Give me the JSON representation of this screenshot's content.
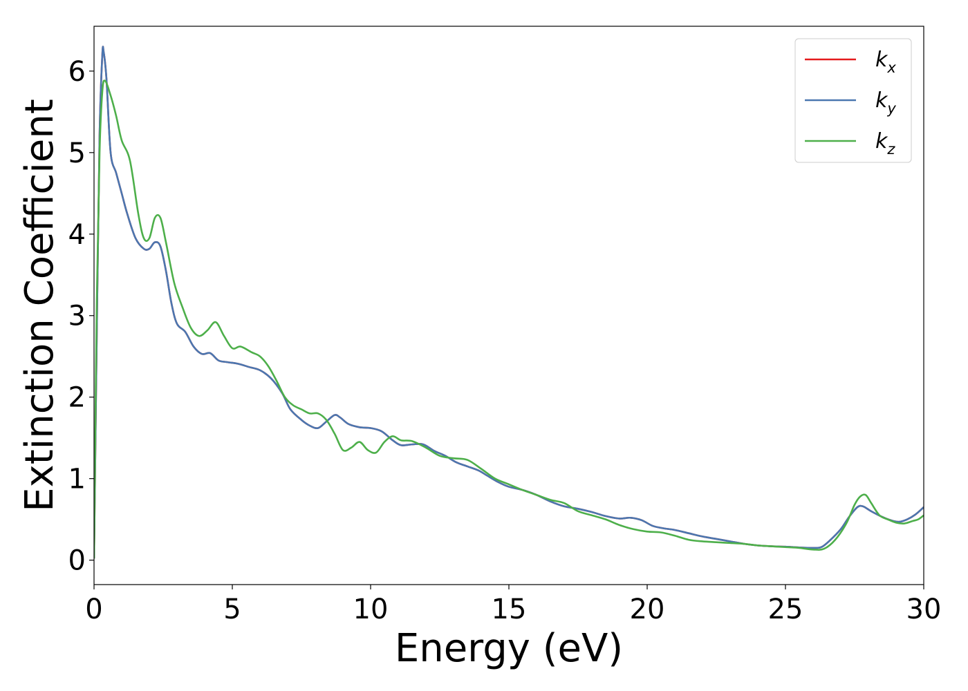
{
  "chart_data": {
    "type": "line",
    "title": "",
    "xlabel": "Energy (eV)",
    "ylabel": "Extinction Coefficient",
    "xlim": [
      0,
      30
    ],
    "ylim": [
      -0.3,
      6.55
    ],
    "xticks": [
      0,
      5,
      10,
      15,
      20,
      25,
      30
    ],
    "yticks": [
      0,
      1,
      2,
      3,
      4,
      5,
      6
    ],
    "grid": false,
    "legend": {
      "placement": "top-right"
    },
    "series": [
      {
        "name": "k_x",
        "label_main": "k",
        "label_sub": "x",
        "color": "#e41a1c",
        "x": [
          0,
          0.1,
          0.2,
          0.3,
          0.35,
          0.45,
          0.6,
          0.8,
          1.0,
          1.2,
          1.5,
          1.8,
          2.0,
          2.2,
          2.4,
          2.6,
          2.8,
          3.0,
          3.3,
          3.6,
          3.9,
          4.2,
          4.5,
          4.8,
          5.2,
          5.6,
          6.0,
          6.4,
          6.8,
          7.1,
          7.5,
          7.8,
          8.1,
          8.4,
          8.7,
          8.9,
          9.2,
          9.6,
          10.0,
          10.4,
          10.8,
          11.1,
          11.5,
          11.9,
          12.3,
          12.7,
          13.1,
          13.5,
          13.9,
          14.2,
          14.6,
          15.0,
          15.5,
          16.0,
          16.5,
          17.0,
          17.5,
          18.0,
          18.5,
          19.0,
          19.4,
          19.8,
          20.2,
          20.6,
          21.0,
          21.5,
          22.0,
          22.5,
          23.0,
          23.5,
          24.0,
          24.5,
          25.0,
          25.5,
          26.0,
          26.3,
          26.6,
          27.0,
          27.3,
          27.6,
          27.8,
          28.1,
          28.5,
          28.8,
          29.1,
          29.4,
          29.7,
          30.0
        ],
        "y": [
          0.02,
          2.8,
          5.2,
          6.2,
          6.23,
          5.9,
          5.0,
          4.75,
          4.5,
          4.25,
          3.95,
          3.82,
          3.82,
          3.9,
          3.85,
          3.55,
          3.15,
          2.9,
          2.8,
          2.62,
          2.53,
          2.54,
          2.45,
          2.43,
          2.41,
          2.37,
          2.33,
          2.23,
          2.05,
          1.85,
          1.72,
          1.65,
          1.62,
          1.7,
          1.78,
          1.75,
          1.67,
          1.63,
          1.62,
          1.58,
          1.47,
          1.41,
          1.42,
          1.42,
          1.34,
          1.28,
          1.2,
          1.15,
          1.1,
          1.04,
          0.96,
          0.9,
          0.86,
          0.8,
          0.72,
          0.66,
          0.63,
          0.59,
          0.54,
          0.51,
          0.52,
          0.49,
          0.42,
          0.39,
          0.37,
          0.33,
          0.29,
          0.26,
          0.23,
          0.2,
          0.18,
          0.17,
          0.165,
          0.155,
          0.15,
          0.16,
          0.24,
          0.38,
          0.53,
          0.65,
          0.66,
          0.6,
          0.53,
          0.49,
          0.47,
          0.5,
          0.56,
          0.65
        ]
      },
      {
        "name": "k_y",
        "label_main": "k",
        "label_sub": "y",
        "color": "#4a77b0",
        "x": [
          0,
          0.1,
          0.2,
          0.3,
          0.35,
          0.45,
          0.6,
          0.8,
          1.0,
          1.2,
          1.5,
          1.8,
          2.0,
          2.2,
          2.4,
          2.6,
          2.8,
          3.0,
          3.3,
          3.6,
          3.9,
          4.2,
          4.5,
          4.8,
          5.2,
          5.6,
          6.0,
          6.4,
          6.8,
          7.1,
          7.5,
          7.8,
          8.1,
          8.4,
          8.7,
          8.9,
          9.2,
          9.6,
          10.0,
          10.4,
          10.8,
          11.1,
          11.5,
          11.9,
          12.3,
          12.7,
          13.1,
          13.5,
          13.9,
          14.2,
          14.6,
          15.0,
          15.5,
          16.0,
          16.5,
          17.0,
          17.5,
          18.0,
          18.5,
          19.0,
          19.4,
          19.8,
          20.2,
          20.6,
          21.0,
          21.5,
          22.0,
          22.5,
          23.0,
          23.5,
          24.0,
          24.5,
          25.0,
          25.5,
          26.0,
          26.3,
          26.6,
          27.0,
          27.3,
          27.6,
          27.8,
          28.1,
          28.5,
          28.8,
          29.1,
          29.4,
          29.7,
          30.0
        ],
        "y": [
          0.02,
          2.8,
          5.2,
          6.2,
          6.23,
          5.9,
          5.0,
          4.75,
          4.5,
          4.25,
          3.95,
          3.82,
          3.82,
          3.9,
          3.85,
          3.55,
          3.15,
          2.9,
          2.8,
          2.62,
          2.53,
          2.54,
          2.45,
          2.43,
          2.41,
          2.37,
          2.33,
          2.23,
          2.05,
          1.85,
          1.72,
          1.65,
          1.62,
          1.7,
          1.78,
          1.75,
          1.67,
          1.63,
          1.62,
          1.58,
          1.47,
          1.41,
          1.42,
          1.42,
          1.34,
          1.28,
          1.2,
          1.15,
          1.1,
          1.04,
          0.96,
          0.9,
          0.86,
          0.8,
          0.72,
          0.66,
          0.63,
          0.59,
          0.54,
          0.51,
          0.52,
          0.49,
          0.42,
          0.39,
          0.37,
          0.33,
          0.29,
          0.26,
          0.23,
          0.2,
          0.18,
          0.17,
          0.165,
          0.155,
          0.15,
          0.16,
          0.24,
          0.38,
          0.53,
          0.65,
          0.66,
          0.6,
          0.53,
          0.49,
          0.47,
          0.5,
          0.56,
          0.65
        ]
      },
      {
        "name": "k_z",
        "label_main": "k",
        "label_sub": "z",
        "color": "#4daf4a",
        "x": [
          0,
          0.1,
          0.2,
          0.3,
          0.4,
          0.6,
          0.8,
          1.0,
          1.3,
          1.6,
          1.8,
          2.0,
          2.2,
          2.4,
          2.6,
          2.9,
          3.2,
          3.5,
          3.8,
          4.1,
          4.4,
          4.7,
          5.0,
          5.3,
          5.7,
          6.0,
          6.3,
          6.6,
          6.9,
          7.2,
          7.5,
          7.8,
          8.1,
          8.4,
          8.7,
          9.0,
          9.3,
          9.6,
          9.9,
          10.2,
          10.5,
          10.8,
          11.1,
          11.5,
          12.0,
          12.5,
          13.0,
          13.5,
          14.0,
          14.5,
          15.0,
          15.5,
          16.0,
          16.5,
          17.0,
          17.5,
          18.0,
          18.5,
          19.0,
          19.5,
          20.0,
          20.5,
          21.0,
          21.5,
          22.0,
          22.5,
          23.0,
          23.5,
          24.0,
          24.5,
          25.0,
          25.5,
          26.0,
          26.4,
          26.8,
          27.2,
          27.5,
          27.7,
          27.9,
          28.1,
          28.4,
          28.7,
          29.0,
          29.3,
          29.6,
          29.8,
          30.0
        ],
        "y": [
          0.02,
          3.2,
          5.0,
          5.75,
          5.88,
          5.7,
          5.45,
          5.15,
          4.9,
          4.25,
          3.95,
          3.95,
          4.2,
          4.2,
          3.9,
          3.4,
          3.1,
          2.85,
          2.75,
          2.82,
          2.92,
          2.75,
          2.6,
          2.62,
          2.55,
          2.5,
          2.38,
          2.2,
          2.0,
          1.9,
          1.85,
          1.8,
          1.8,
          1.72,
          1.55,
          1.35,
          1.38,
          1.45,
          1.35,
          1.32,
          1.45,
          1.52,
          1.47,
          1.46,
          1.38,
          1.28,
          1.25,
          1.23,
          1.12,
          1.0,
          0.93,
          0.86,
          0.8,
          0.74,
          0.7,
          0.6,
          0.55,
          0.5,
          0.43,
          0.38,
          0.35,
          0.34,
          0.3,
          0.25,
          0.23,
          0.22,
          0.21,
          0.2,
          0.18,
          0.17,
          0.16,
          0.15,
          0.13,
          0.14,
          0.25,
          0.45,
          0.68,
          0.78,
          0.8,
          0.7,
          0.55,
          0.5,
          0.46,
          0.45,
          0.48,
          0.5,
          0.55
        ]
      }
    ]
  }
}
